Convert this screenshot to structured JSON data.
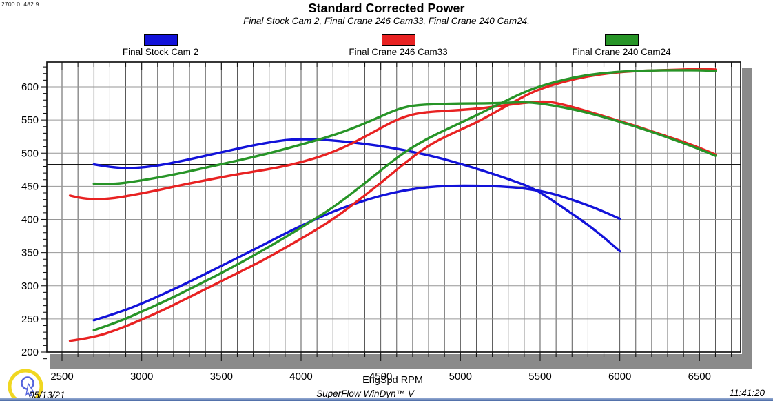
{
  "readout": "2700.0, 482.9",
  "title": "Standard Corrected Power",
  "subtitle": "Final Stock Cam 2, Final Crane 246 Cam33, Final Crane 240 Cam24,",
  "legend": [
    {
      "label": "Final Stock Cam 2",
      "color": "#1212d9"
    },
    {
      "label": "Final Crane 246 Cam33",
      "color": "#e82222"
    },
    {
      "label": "Final Crane 240 Cam24",
      "color": "#279427"
    }
  ],
  "axes": {
    "x": {
      "label": "EngSpd RPM"
    },
    "y": {
      "label": ""
    }
  },
  "footer": {
    "date": "05/13/21",
    "app": "SuperFlow WinDyn™ V",
    "time": "11:41:20"
  },
  "cursor": {
    "rpm": 2700.0,
    "value": 482.9
  },
  "chart_data": {
    "type": "line",
    "title": "Standard Corrected Power",
    "xlabel": "EngSpd RPM",
    "ylabel": "",
    "x_range": [
      2400,
      6760
    ],
    "y_range": [
      187,
      638
    ],
    "x_ticks": [
      2500,
      3000,
      3500,
      4000,
      4500,
      5000,
      5500,
      6000,
      6500
    ],
    "y_ticks": [
      200,
      250,
      300,
      350,
      400,
      450,
      500,
      550,
      600
    ],
    "grid": {
      "x_minor_step": 100,
      "y_major_step": 50,
      "y_axis_minor_tick_step": 10
    },
    "legend_position": "top",
    "series": [
      {
        "name": "Final Stock Cam 2 - torque",
        "color": "#1212d9",
        "points": [
          [
            2700,
            483
          ],
          [
            2820,
            478
          ],
          [
            2950,
            477
          ],
          [
            3100,
            481
          ],
          [
            3250,
            488
          ],
          [
            3400,
            496
          ],
          [
            3550,
            504
          ],
          [
            3700,
            512
          ],
          [
            3850,
            518
          ],
          [
            3950,
            521
          ],
          [
            4100,
            521
          ],
          [
            4250,
            518
          ],
          [
            4400,
            514
          ],
          [
            4550,
            509
          ],
          [
            4700,
            502
          ],
          [
            4850,
            494
          ],
          [
            5000,
            484
          ],
          [
            5150,
            473
          ],
          [
            5300,
            461
          ],
          [
            5450,
            448
          ],
          [
            5570,
            430
          ],
          [
            5680,
            412
          ],
          [
            5800,
            392
          ],
          [
            5900,
            373
          ],
          [
            6000,
            352
          ]
        ]
      },
      {
        "name": "Final Stock Cam 2 - power",
        "color": "#1212d9",
        "points": [
          [
            2700,
            248
          ],
          [
            2850,
            259
          ],
          [
            3000,
            273
          ],
          [
            3150,
            289
          ],
          [
            3300,
            306
          ],
          [
            3450,
            324
          ],
          [
            3600,
            342
          ],
          [
            3750,
            360
          ],
          [
            3900,
            379
          ],
          [
            4050,
            396
          ],
          [
            4200,
            412
          ],
          [
            4350,
            425
          ],
          [
            4500,
            436
          ],
          [
            4650,
            444
          ],
          [
            4800,
            449
          ],
          [
            4950,
            451
          ],
          [
            5100,
            451
          ],
          [
            5250,
            450
          ],
          [
            5400,
            447
          ],
          [
            5550,
            441
          ],
          [
            5700,
            430
          ],
          [
            5850,
            417
          ],
          [
            6000,
            401
          ]
        ]
      },
      {
        "name": "Final Crane 246 Cam33 - torque",
        "color": "#e82222",
        "points": [
          [
            2550,
            436
          ],
          [
            2650,
            430
          ],
          [
            2800,
            431
          ],
          [
            2950,
            437
          ],
          [
            3100,
            444
          ],
          [
            3250,
            452
          ],
          [
            3400,
            459
          ],
          [
            3550,
            466
          ],
          [
            3700,
            472
          ],
          [
            3850,
            478
          ],
          [
            4000,
            486
          ],
          [
            4150,
            497
          ],
          [
            4300,
            512
          ],
          [
            4450,
            531
          ],
          [
            4600,
            551
          ],
          [
            4720,
            560
          ],
          [
            4850,
            563
          ],
          [
            5000,
            565
          ],
          [
            5150,
            568
          ],
          [
            5300,
            573
          ],
          [
            5450,
            577
          ],
          [
            5550,
            578
          ],
          [
            5650,
            573
          ],
          [
            5800,
            563
          ],
          [
            5950,
            552
          ],
          [
            6100,
            541
          ],
          [
            6250,
            529
          ],
          [
            6400,
            517
          ],
          [
            6500,
            508
          ],
          [
            6600,
            498
          ]
        ]
      },
      {
        "name": "Final Crane 246 Cam33 - power",
        "color": "#e82222",
        "points": [
          [
            2550,
            217
          ],
          [
            2700,
            222
          ],
          [
            2850,
            234
          ],
          [
            3000,
            249
          ],
          [
            3150,
            265
          ],
          [
            3300,
            283
          ],
          [
            3450,
            301
          ],
          [
            3600,
            319
          ],
          [
            3750,
            337
          ],
          [
            3900,
            357
          ],
          [
            4050,
            378
          ],
          [
            4200,
            400
          ],
          [
            4350,
            427
          ],
          [
            4500,
            455
          ],
          [
            4650,
            485
          ],
          [
            4800,
            512
          ],
          [
            4950,
            530
          ],
          [
            5100,
            546
          ],
          [
            5250,
            566
          ],
          [
            5400,
            586
          ],
          [
            5500,
            597
          ],
          [
            5650,
            608
          ],
          [
            5800,
            616
          ],
          [
            5950,
            621
          ],
          [
            6100,
            624
          ],
          [
            6250,
            625
          ],
          [
            6400,
            626
          ],
          [
            6500,
            627
          ],
          [
            6600,
            626
          ]
        ]
      },
      {
        "name": "Final Crane 240 Cam24 - torque",
        "color": "#279427",
        "points": [
          [
            2700,
            454
          ],
          [
            2820,
            453
          ],
          [
            2950,
            457
          ],
          [
            3100,
            463
          ],
          [
            3250,
            470
          ],
          [
            3400,
            478
          ],
          [
            3550,
            486
          ],
          [
            3700,
            494
          ],
          [
            3850,
            503
          ],
          [
            4000,
            513
          ],
          [
            4150,
            523
          ],
          [
            4300,
            535
          ],
          [
            4450,
            550
          ],
          [
            4600,
            566
          ],
          [
            4700,
            572
          ],
          [
            4850,
            574
          ],
          [
            5000,
            575
          ],
          [
            5150,
            575
          ],
          [
            5300,
            576
          ],
          [
            5400,
            577
          ],
          [
            5500,
            575
          ],
          [
            5650,
            569
          ],
          [
            5800,
            561
          ],
          [
            5950,
            551
          ],
          [
            6100,
            540
          ],
          [
            6250,
            528
          ],
          [
            6400,
            515
          ],
          [
            6500,
            506
          ],
          [
            6600,
            496
          ]
        ]
      },
      {
        "name": "Final Crane 240 Cam24 - power",
        "color": "#279427",
        "points": [
          [
            2700,
            233
          ],
          [
            2850,
            245
          ],
          [
            3000,
            261
          ],
          [
            3150,
            277
          ],
          [
            3300,
            295
          ],
          [
            3450,
            313
          ],
          [
            3600,
            332
          ],
          [
            3750,
            352
          ],
          [
            3900,
            373
          ],
          [
            4050,
            395
          ],
          [
            4200,
            418
          ],
          [
            4350,
            445
          ],
          [
            4500,
            474
          ],
          [
            4650,
            502
          ],
          [
            4800,
            523
          ],
          [
            4950,
            540
          ],
          [
            5100,
            557
          ],
          [
            5250,
            575
          ],
          [
            5400,
            592
          ],
          [
            5500,
            601
          ],
          [
            5650,
            611
          ],
          [
            5800,
            618
          ],
          [
            5950,
            622
          ],
          [
            6100,
            624
          ],
          [
            6250,
            625
          ],
          [
            6400,
            625
          ],
          [
            6500,
            625
          ],
          [
            6600,
            624
          ]
        ]
      }
    ]
  }
}
